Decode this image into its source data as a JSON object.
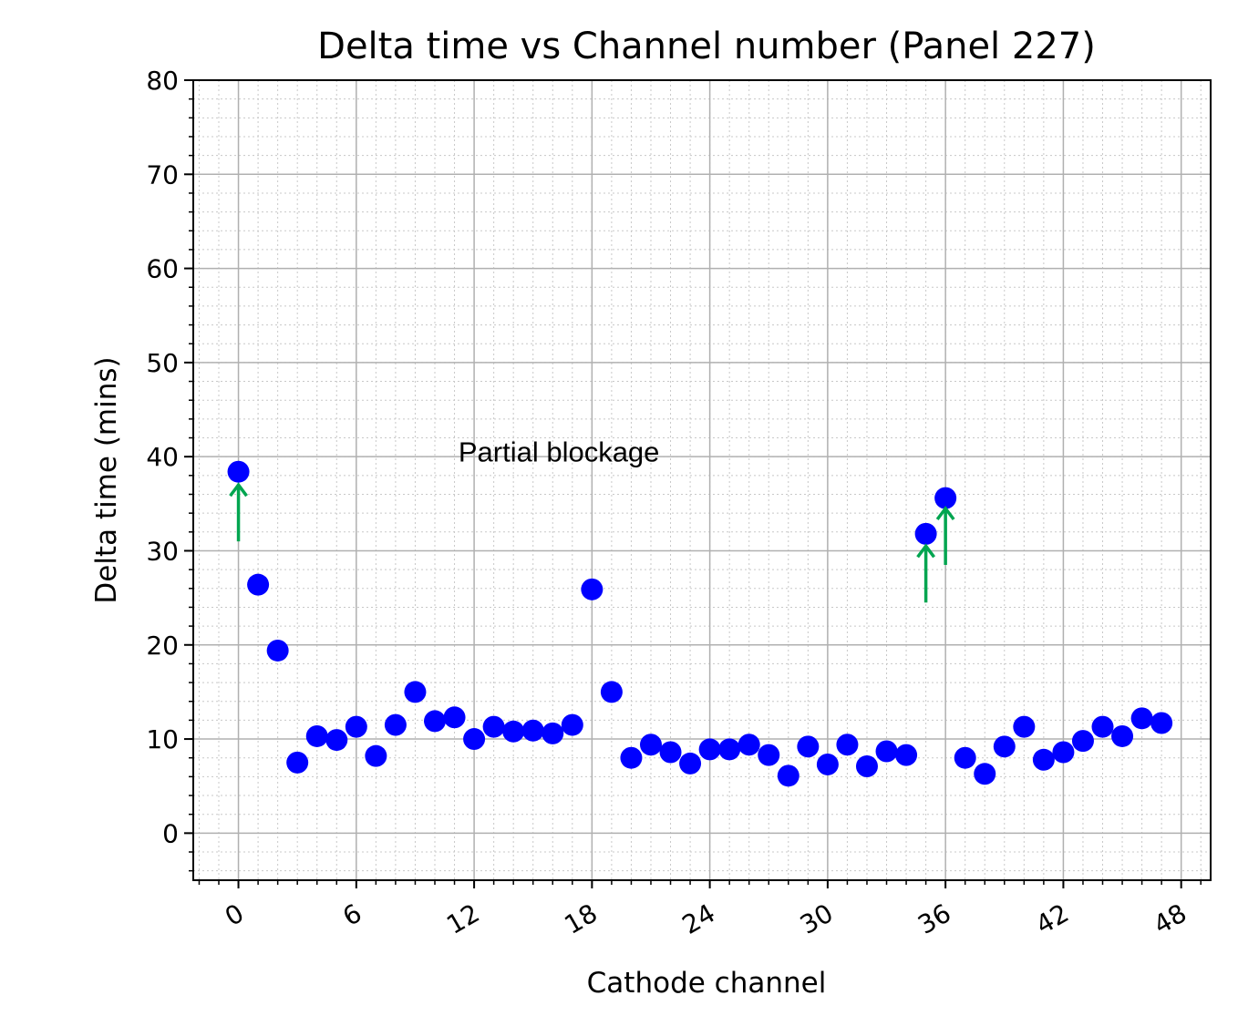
{
  "chart_data": {
    "type": "scatter",
    "title": "Delta time vs Channel number (Panel 227)",
    "xlabel": "Cathode channel",
    "ylabel": "Delta time (mins)",
    "xlim": [
      -2.3,
      49.5
    ],
    "ylim": [
      -5,
      80
    ],
    "x_ticks": [
      0,
      6,
      12,
      18,
      24,
      30,
      36,
      42,
      48
    ],
    "y_ticks": [
      0,
      10,
      20,
      30,
      40,
      50,
      60,
      70,
      80
    ],
    "grid": true,
    "minor_grid": true,
    "marker_color": "#0000ff",
    "annotation_color": "#00a550",
    "series": [
      {
        "x": [
          0,
          1,
          2,
          3,
          4,
          5,
          6,
          7,
          8,
          9,
          10,
          11,
          12,
          13,
          14,
          15,
          16,
          17,
          18,
          19,
          20,
          21,
          22,
          23,
          24,
          25,
          26,
          27,
          28,
          29,
          30,
          31,
          32,
          33,
          34,
          35,
          36,
          37,
          38,
          39,
          40,
          41,
          42,
          43,
          44,
          45,
          46,
          47
        ],
        "y": [
          38.4,
          26.4,
          19.4,
          7.5,
          10.3,
          9.9,
          11.3,
          8.2,
          11.5,
          15.0,
          11.9,
          12.3,
          10.0,
          11.3,
          10.8,
          10.9,
          10.6,
          11.5,
          25.9,
          15.0,
          8.0,
          9.4,
          8.6,
          7.4,
          8.9,
          8.9,
          9.4,
          8.3,
          6.1,
          9.2,
          7.3,
          9.4,
          7.1,
          8.7,
          8.3,
          31.8,
          35.6,
          8.0,
          6.3,
          9.2,
          11.3,
          7.8,
          8.6,
          9.8,
          11.3,
          10.3,
          12.2,
          11.7
        ]
      }
    ],
    "annotations": [
      {
        "text": "Partial blockage",
        "x": 11.2,
        "y": 39.5
      },
      {
        "type": "arrow",
        "points_to_channel": 0,
        "from_y": 31,
        "to_y": 37
      },
      {
        "type": "arrow",
        "points_to_channel": 35,
        "from_y": 24.5,
        "to_y": 30.5
      },
      {
        "type": "arrow",
        "points_to_channel": 36,
        "from_y": 28.5,
        "to_y": 34.5
      }
    ]
  }
}
